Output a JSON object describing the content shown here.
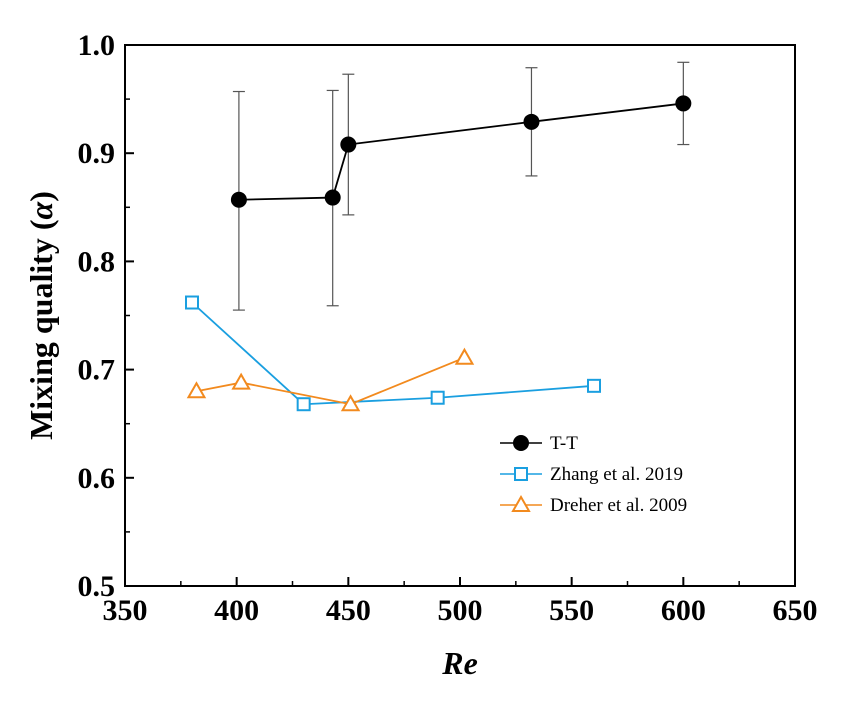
{
  "chart_data": {
    "type": "line",
    "xlabel": "Re",
    "ylabel": "Mixing quality (α)",
    "ylabel_parts": [
      "Mixing quality (",
      "α",
      ")"
    ],
    "xlim": [
      350,
      650
    ],
    "ylim": [
      0.5,
      1.0
    ],
    "x_ticks": [
      "350",
      "400",
      "450",
      "500",
      "550",
      "600",
      "650"
    ],
    "y_ticks": [
      "0.5",
      "0.6",
      "0.7",
      "0.8",
      "0.9",
      "1.0"
    ],
    "grid": false,
    "legend_position": "lower-right",
    "series": [
      {
        "name": "T-T",
        "color": "#000000",
        "marker": "filled-circle",
        "x": [
          401,
          443,
          450,
          532,
          600
        ],
        "y": [
          0.857,
          0.859,
          0.908,
          0.929,
          0.946
        ],
        "error_low": [
          0.755,
          0.759,
          0.843,
          0.879,
          0.908
        ],
        "error_high": [
          0.957,
          0.958,
          0.973,
          0.979,
          0.984
        ]
      },
      {
        "name": "Zhang et al. 2019",
        "color": "#1a9fe0",
        "marker": "open-square",
        "x": [
          380,
          430,
          490,
          560
        ],
        "y": [
          0.762,
          0.668,
          0.674,
          0.685
        ]
      },
      {
        "name": "Dreher et al. 2009",
        "color": "#f28a1e",
        "marker": "open-triangle",
        "x": [
          382,
          402,
          451,
          502
        ],
        "y": [
          0.68,
          0.688,
          0.668,
          0.711
        ]
      }
    ]
  }
}
